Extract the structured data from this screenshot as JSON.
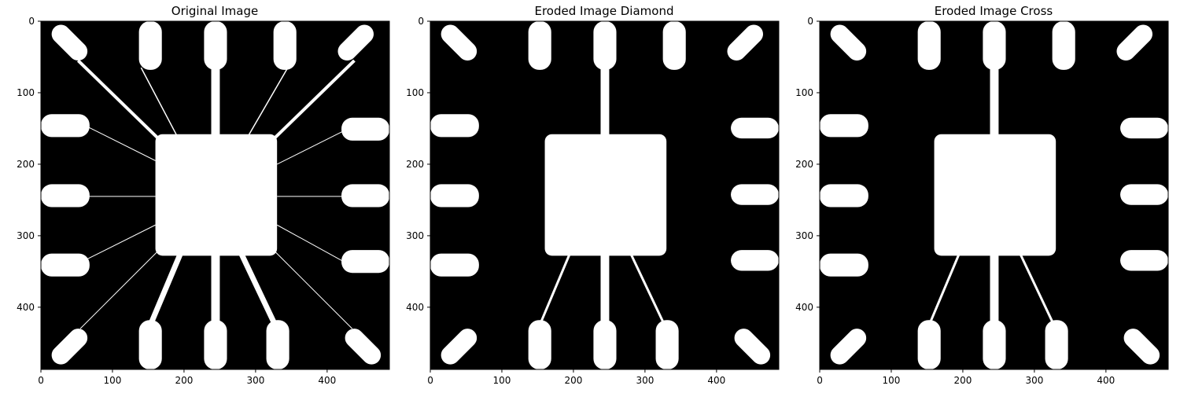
{
  "panels": [
    {
      "title": "Original Image",
      "variant": "original"
    },
    {
      "title": "Eroded Image Diamond",
      "variant": "eroded"
    },
    {
      "title": "Eroded Image Cross",
      "variant": "eroded"
    }
  ],
  "axes": {
    "x_ticks": [
      "0",
      "100",
      "200",
      "300",
      "400"
    ],
    "y_ticks": [
      "0",
      "100",
      "200",
      "300",
      "400"
    ]
  },
  "colors": {
    "background": "#000000",
    "foreground": "#ffffff",
    "frame": "#000000",
    "text": "#000000"
  }
}
